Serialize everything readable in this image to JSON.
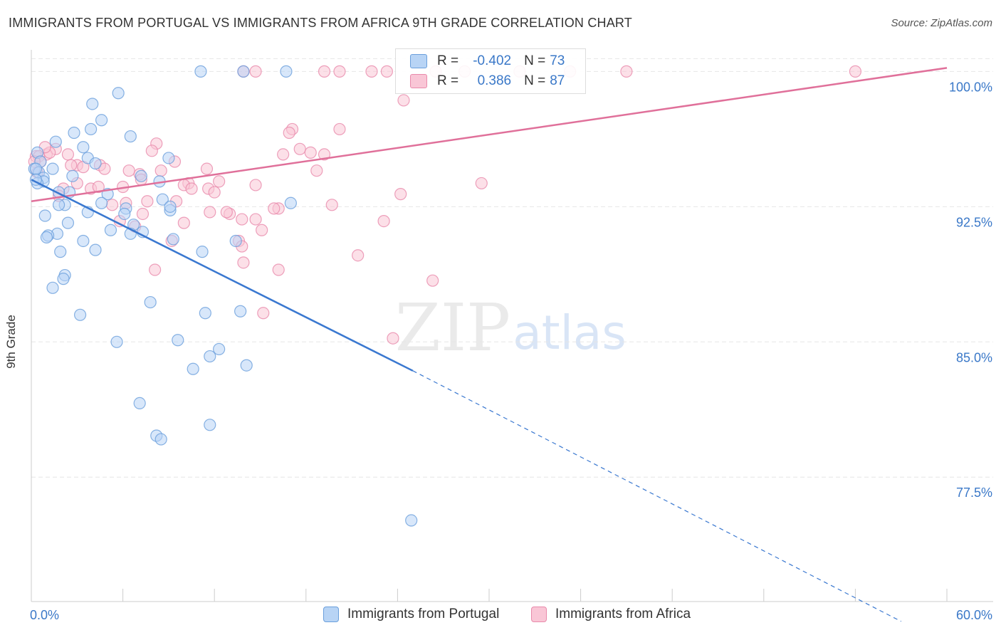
{
  "title": "IMMIGRANTS FROM PORTUGAL VS IMMIGRANTS FROM AFRICA 9TH GRADE CORRELATION CHART",
  "source": "Source: ZipAtlas.com",
  "watermark": {
    "zip": "ZIP",
    "atlas": "atlas"
  },
  "colors": {
    "portugal_fill": "#b8d4f5",
    "portugal_stroke": "#6a9fdc",
    "portugal_line": "#3a78d0",
    "africa_fill": "#f9c6d6",
    "africa_stroke": "#e98aab",
    "africa_line": "#e0709a",
    "tick_label": "#3a78c8",
    "grid": "#e6e6e6"
  },
  "legend_top": {
    "rows": [
      {
        "r_label": "R =",
        "r_value": "-0.402",
        "n_label": "N =",
        "n_value": "73"
      },
      {
        "r_label": "R =",
        "r_value": "0.386",
        "n_label": "N =",
        "n_value": "87"
      }
    ]
  },
  "chart_data": {
    "type": "scatter",
    "title": "IMMIGRANTS FROM PORTUGAL VS IMMIGRANTS FROM AFRICA 9TH GRADE CORRELATION CHART",
    "xlabel": "",
    "ylabel": "9th Grade",
    "xlim": [
      0,
      60
    ],
    "ylim": [
      70.6,
      101.2
    ],
    "x_tick_labels": {
      "left": "0.0%",
      "right": "60.0%"
    },
    "y_ticks": [
      {
        "value": 100.0,
        "label": "100.0%"
      },
      {
        "value": 92.5,
        "label": "92.5%"
      },
      {
        "value": 85.0,
        "label": "85.0%"
      },
      {
        "value": 77.5,
        "label": "77.5%"
      }
    ],
    "grid": true,
    "legend_position": "bottom-center",
    "series": [
      {
        "name": "Immigrants from Portugal",
        "R": -0.402,
        "N": 73,
        "trend": {
          "x0": 0,
          "y0": 94.0,
          "x1": 25.0,
          "y1": 83.4,
          "dashed_to_x": 57.0,
          "dashed_to_y": 69.5
        },
        "points": [
          [
            11.1,
            100.0
          ],
          [
            13.9,
            100.0
          ],
          [
            16.7,
            100.0
          ],
          [
            5.7,
            98.8
          ],
          [
            4.0,
            98.2
          ],
          [
            4.6,
            97.3
          ],
          [
            3.9,
            96.8
          ],
          [
            2.8,
            96.6
          ],
          [
            6.5,
            96.4
          ],
          [
            1.6,
            96.1
          ],
          [
            3.4,
            95.8
          ],
          [
            0.4,
            95.5
          ],
          [
            9.0,
            95.2
          ],
          [
            3.7,
            95.2
          ],
          [
            0.6,
            95.0
          ],
          [
            4.2,
            94.9
          ],
          [
            0.2,
            94.6
          ],
          [
            1.4,
            94.6
          ],
          [
            0.5,
            94.4
          ],
          [
            7.2,
            94.2
          ],
          [
            2.7,
            94.2
          ],
          [
            0.8,
            94.1
          ],
          [
            0.8,
            93.9
          ],
          [
            0.4,
            93.8
          ],
          [
            8.4,
            93.9
          ],
          [
            2.5,
            93.3
          ],
          [
            5.0,
            93.2
          ],
          [
            1.8,
            93.3
          ],
          [
            17.0,
            92.7
          ],
          [
            4.6,
            92.7
          ],
          [
            2.2,
            92.6
          ],
          [
            1.8,
            92.6
          ],
          [
            6.2,
            92.4
          ],
          [
            9.1,
            92.3
          ],
          [
            3.7,
            92.2
          ],
          [
            6.1,
            92.1
          ],
          [
            0.9,
            92.0
          ],
          [
            2.4,
            91.6
          ],
          [
            6.7,
            91.5
          ],
          [
            5.2,
            91.2
          ],
          [
            7.3,
            91.1
          ],
          [
            6.5,
            91.0
          ],
          [
            1.7,
            91.0
          ],
          [
            1.1,
            90.9
          ],
          [
            1.0,
            90.8
          ],
          [
            3.4,
            90.6
          ],
          [
            9.3,
            90.7
          ],
          [
            13.4,
            90.6
          ],
          [
            4.2,
            90.1
          ],
          [
            1.9,
            90.0
          ],
          [
            11.2,
            90.0
          ],
          [
            2.2,
            88.7
          ],
          [
            2.1,
            88.5
          ],
          [
            1.4,
            88.0
          ],
          [
            7.8,
            87.2
          ],
          [
            13.7,
            86.7
          ],
          [
            3.2,
            86.5
          ],
          [
            11.4,
            86.6
          ],
          [
            5.6,
            85.0
          ],
          [
            9.6,
            85.1
          ],
          [
            12.3,
            84.6
          ],
          [
            11.7,
            84.2
          ],
          [
            14.1,
            83.7
          ],
          [
            10.6,
            83.5
          ],
          [
            7.1,
            81.6
          ],
          [
            11.7,
            80.4
          ],
          [
            8.2,
            79.8
          ],
          [
            8.5,
            79.6
          ],
          [
            24.9,
            75.1
          ],
          [
            0.3,
            94.6
          ],
          [
            0.3,
            94.0
          ],
          [
            8.6,
            92.9
          ],
          [
            9.1,
            92.5
          ]
        ]
      },
      {
        "name": "Immigrants from Africa",
        "R": 0.386,
        "N": 87,
        "trend": {
          "x0": 0,
          "y0": 92.8,
          "x1": 60.0,
          "y1": 100.2
        },
        "points": [
          [
            13.9,
            100.0
          ],
          [
            14.7,
            100.0
          ],
          [
            19.2,
            100.0
          ],
          [
            20.2,
            100.0
          ],
          [
            22.3,
            100.0
          ],
          [
            23.3,
            100.0
          ],
          [
            26.5,
            100.0
          ],
          [
            28.4,
            100.0
          ],
          [
            32.0,
            100.0
          ],
          [
            35.3,
            100.0
          ],
          [
            39.0,
            100.0
          ],
          [
            54.0,
            100.0
          ],
          [
            24.4,
            98.4
          ],
          [
            20.2,
            96.8
          ],
          [
            17.1,
            96.8
          ],
          [
            16.9,
            96.6
          ],
          [
            8.2,
            96.0
          ],
          [
            1.6,
            95.7
          ],
          [
            7.9,
            95.6
          ],
          [
            17.6,
            95.7
          ],
          [
            18.3,
            95.5
          ],
          [
            19.2,
            95.4
          ],
          [
            2.4,
            95.4
          ],
          [
            16.5,
            95.4
          ],
          [
            1.0,
            95.4
          ],
          [
            0.3,
            95.3
          ],
          [
            1.2,
            95.5
          ],
          [
            0.5,
            95.3
          ],
          [
            9.4,
            95.0
          ],
          [
            0.6,
            95.0
          ],
          [
            3.0,
            94.8
          ],
          [
            4.5,
            94.8
          ],
          [
            3.4,
            94.7
          ],
          [
            4.8,
            94.6
          ],
          [
            11.5,
            94.6
          ],
          [
            8.5,
            94.5
          ],
          [
            6.4,
            94.5
          ],
          [
            7.1,
            94.3
          ],
          [
            18.7,
            94.5
          ],
          [
            7.2,
            94.0
          ],
          [
            3.0,
            93.8
          ],
          [
            12.3,
            93.9
          ],
          [
            10.3,
            93.8
          ],
          [
            10.0,
            93.7
          ],
          [
            14.7,
            93.7
          ],
          [
            29.5,
            93.8
          ],
          [
            6.0,
            93.6
          ],
          [
            2.1,
            93.5
          ],
          [
            10.5,
            93.5
          ],
          [
            11.6,
            93.5
          ],
          [
            3.9,
            93.5
          ],
          [
            24.2,
            93.2
          ],
          [
            1.8,
            93.1
          ],
          [
            9.5,
            92.8
          ],
          [
            7.6,
            92.8
          ],
          [
            6.2,
            92.7
          ],
          [
            5.3,
            92.6
          ],
          [
            19.7,
            92.6
          ],
          [
            16.2,
            92.4
          ],
          [
            15.9,
            92.4
          ],
          [
            11.7,
            92.2
          ],
          [
            13.0,
            92.1
          ],
          [
            7.3,
            92.1
          ],
          [
            12.8,
            92.2
          ],
          [
            10.0,
            91.6
          ],
          [
            13.8,
            91.8
          ],
          [
            14.7,
            91.8
          ],
          [
            23.1,
            91.7
          ],
          [
            5.8,
            91.7
          ],
          [
            6.8,
            91.4
          ],
          [
            15.1,
            91.2
          ],
          [
            9.2,
            90.6
          ],
          [
            13.6,
            90.6
          ],
          [
            13.8,
            90.3
          ],
          [
            21.4,
            89.8
          ],
          [
            13.9,
            89.4
          ],
          [
            16.2,
            89.0
          ],
          [
            8.1,
            89.0
          ],
          [
            26.3,
            88.4
          ],
          [
            15.2,
            86.6
          ],
          [
            23.7,
            85.2
          ],
          [
            0.2,
            95.0
          ],
          [
            0.4,
            94.4
          ],
          [
            0.9,
            95.8
          ],
          [
            2.6,
            94.8
          ],
          [
            4.4,
            93.6
          ],
          [
            12.0,
            93.3
          ]
        ]
      }
    ]
  },
  "legend_bottom": {
    "items": [
      "Immigrants from Portugal",
      "Immigrants from Africa"
    ]
  }
}
